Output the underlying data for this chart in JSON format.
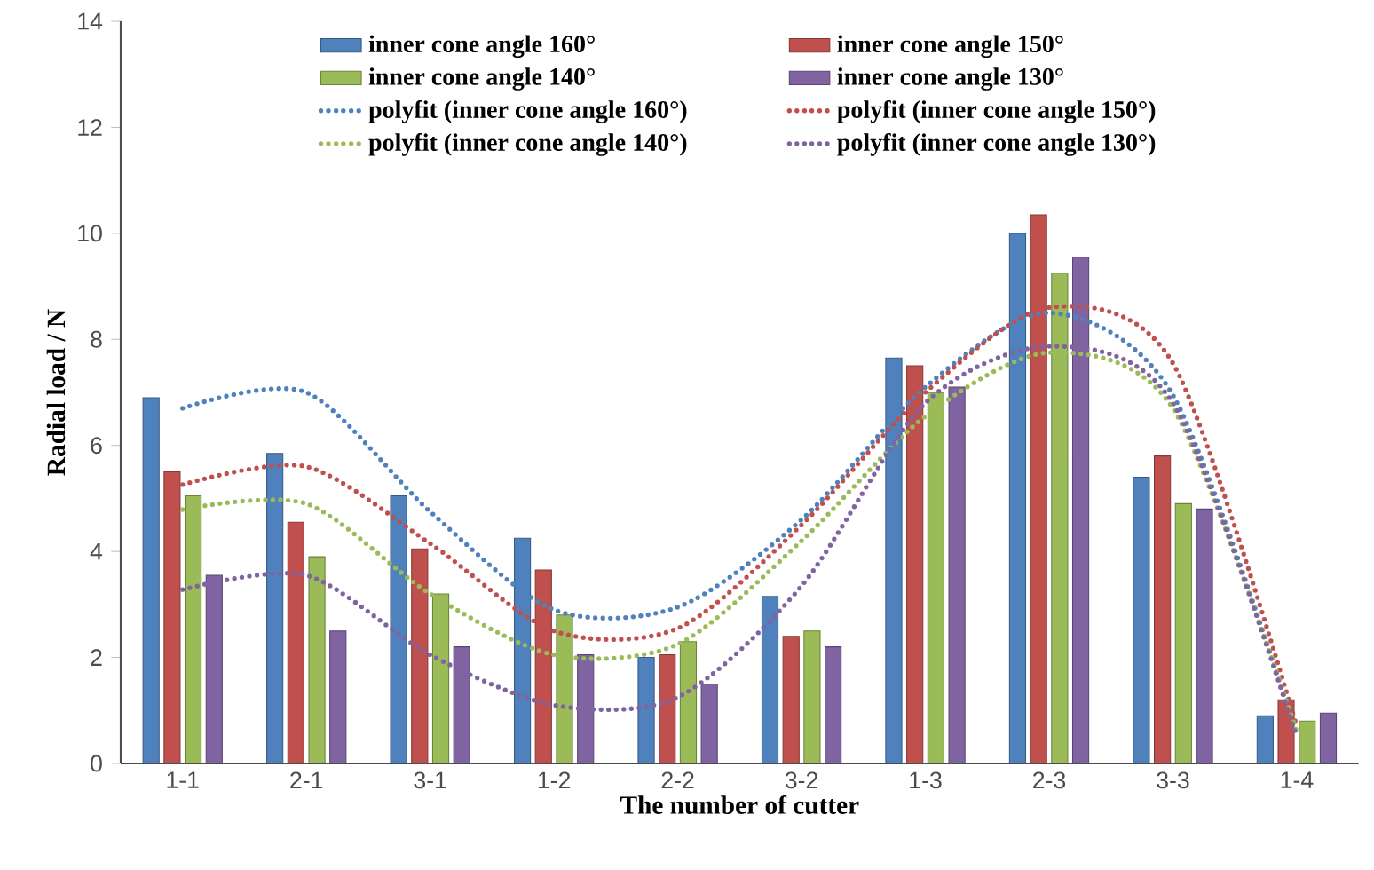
{
  "chart_data": {
    "type": "bar",
    "xlabel": "The number of cutter",
    "ylabel": "Radial load / N",
    "categories": [
      "1-1",
      "2-1",
      "3-1",
      "1-2",
      "2-2",
      "3-2",
      "1-3",
      "2-3",
      "3-3",
      "1-4"
    ],
    "ylim": [
      0,
      14
    ],
    "yticks": [
      0,
      2,
      4,
      6,
      8,
      10,
      12,
      14
    ],
    "legend": "top",
    "series": [
      {
        "name": "inner cone angle 160°",
        "color": "#4f81bd",
        "values": [
          6.9,
          5.85,
          5.05,
          4.25,
          2.0,
          3.15,
          7.65,
          10.0,
          5.4,
          0.9
        ]
      },
      {
        "name": "inner cone angle 150°",
        "color": "#c0504d",
        "values": [
          5.5,
          4.55,
          4.05,
          3.65,
          2.05,
          2.4,
          7.5,
          10.35,
          5.8,
          1.2
        ]
      },
      {
        "name": "inner cone angle 140°",
        "color": "#9bbb59",
        "values": [
          5.05,
          3.9,
          3.2,
          2.8,
          2.3,
          2.5,
          7.0,
          9.25,
          4.9,
          0.8
        ]
      },
      {
        "name": "inner cone angle 130°",
        "color": "#8064a2",
        "values": [
          3.55,
          2.5,
          2.2,
          2.05,
          1.5,
          2.2,
          7.1,
          9.55,
          4.8,
          0.95
        ]
      },
      {
        "name": "polyfit (inner cone angle 160°)",
        "type": "line",
        "line_style": "dotted",
        "marker": "none",
        "color": "#4f81bd",
        "values": [
          6.7,
          7.0,
          4.75,
          2.9,
          2.95,
          4.6,
          7.1,
          8.5,
          6.95,
          0.55
        ]
      },
      {
        "name": "polyfit (inner cone angle 150°)",
        "type": "line",
        "line_style": "dotted",
        "marker": "none",
        "color": "#c0504d",
        "values": [
          5.26,
          5.6,
          4.15,
          2.5,
          2.55,
          4.5,
          7.0,
          8.6,
          7.55,
          0.7
        ]
      },
      {
        "name": "polyfit (inner cone angle 140°)",
        "type": "line",
        "line_style": "dotted",
        "marker": "none",
        "color": "#9bbb59",
        "values": [
          4.79,
          4.9,
          3.2,
          2.05,
          2.25,
          4.2,
          6.55,
          7.75,
          6.7,
          0.6
        ]
      },
      {
        "name": "polyfit (inner cone angle 130°)",
        "type": "line",
        "line_style": "dotted",
        "marker": "none",
        "color": "#8064a2",
        "values": [
          3.28,
          3.55,
          2.05,
          1.1,
          1.25,
          3.35,
          6.8,
          7.87,
          6.8,
          0.5
        ]
      }
    ]
  }
}
